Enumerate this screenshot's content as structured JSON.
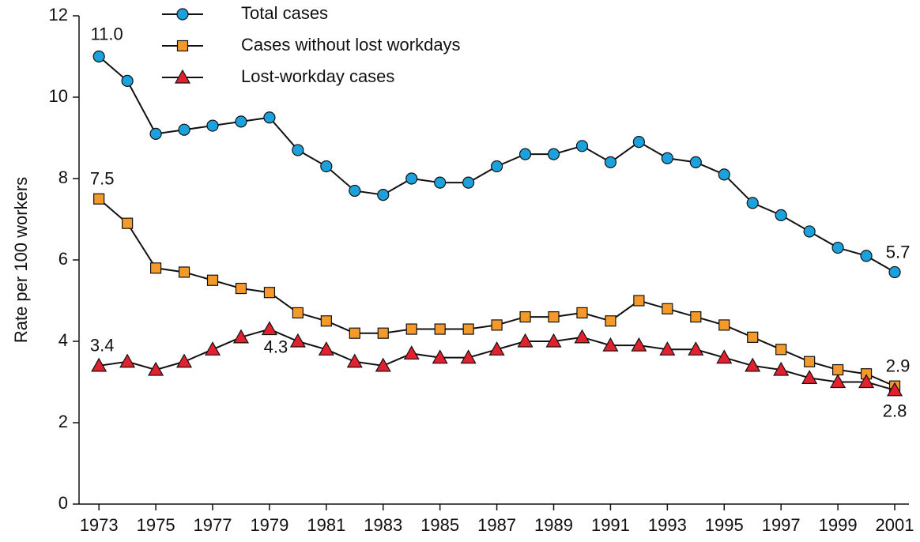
{
  "chart_data": {
    "type": "line",
    "y_label": "Rate per 100 workers",
    "x": [
      1973,
      1974,
      1975,
      1976,
      1977,
      1978,
      1979,
      1980,
      1981,
      1982,
      1983,
      1984,
      1985,
      1986,
      1987,
      1988,
      1989,
      1990,
      1991,
      1992,
      1993,
      1994,
      1995,
      1996,
      1997,
      1998,
      1999,
      2000,
      2001
    ],
    "series": [
      {
        "name": "Total cases",
        "color": "#1ba1dc",
        "marker": "circle",
        "values": [
          11.0,
          10.4,
          9.1,
          9.2,
          9.3,
          9.4,
          9.5,
          8.7,
          8.3,
          7.7,
          7.6,
          8.0,
          7.9,
          7.9,
          8.3,
          8.6,
          8.6,
          8.8,
          8.4,
          8.9,
          8.5,
          8.4,
          8.1,
          7.4,
          7.1,
          6.7,
          6.3,
          6.1,
          5.7
        ],
        "value_labels": [
          "11.0",
          null,
          null,
          null,
          null,
          null,
          null,
          null,
          null,
          null,
          null,
          null,
          null,
          null,
          null,
          null,
          null,
          null,
          null,
          null,
          null,
          null,
          null,
          null,
          null,
          null,
          null,
          null,
          "5.7"
        ]
      },
      {
        "name": "Cases without lost workdays",
        "color": "#f39a2b",
        "marker": "square",
        "values": [
          7.5,
          6.9,
          5.8,
          5.7,
          5.5,
          5.3,
          5.2,
          4.7,
          4.5,
          4.2,
          4.2,
          4.3,
          4.3,
          4.3,
          4.4,
          4.6,
          4.6,
          4.7,
          4.5,
          5.0,
          4.8,
          4.6,
          4.4,
          4.1,
          3.8,
          3.5,
          3.3,
          3.2,
          2.9
        ],
        "value_labels": [
          "7.5",
          null,
          null,
          null,
          null,
          null,
          null,
          null,
          null,
          null,
          null,
          null,
          null,
          null,
          null,
          null,
          null,
          null,
          null,
          null,
          null,
          null,
          null,
          null,
          null,
          null,
          null,
          null,
          "2.9"
        ]
      },
      {
        "name": "Lost-workday cases",
        "color": "#e3202d",
        "marker": "triangle",
        "values": [
          3.4,
          3.5,
          3.3,
          3.5,
          3.8,
          4.1,
          4.3,
          4.0,
          3.8,
          3.5,
          3.4,
          3.7,
          3.6,
          3.6,
          3.8,
          4.0,
          4.0,
          4.1,
          3.9,
          3.9,
          3.8,
          3.8,
          3.6,
          3.4,
          3.3,
          3.1,
          3.0,
          3.0,
          2.8
        ],
        "value_labels": [
          "3.4",
          null,
          null,
          null,
          null,
          null,
          "4.3",
          null,
          null,
          null,
          null,
          null,
          null,
          null,
          null,
          null,
          null,
          null,
          null,
          null,
          null,
          null,
          null,
          null,
          null,
          null,
          null,
          null,
          "2.8"
        ]
      }
    ],
    "xlim": [
      1972.3,
      2001.5
    ],
    "xticks": [
      1973,
      1975,
      1977,
      1979,
      1981,
      1983,
      1985,
      1987,
      1989,
      1991,
      1993,
      1995,
      1997,
      1999,
      2001
    ],
    "ylim": [
      0,
      12
    ],
    "yticks": [
      0,
      2,
      4,
      6,
      8,
      10,
      12
    ],
    "line_color": "#111111",
    "grid": false,
    "legend": "top"
  }
}
